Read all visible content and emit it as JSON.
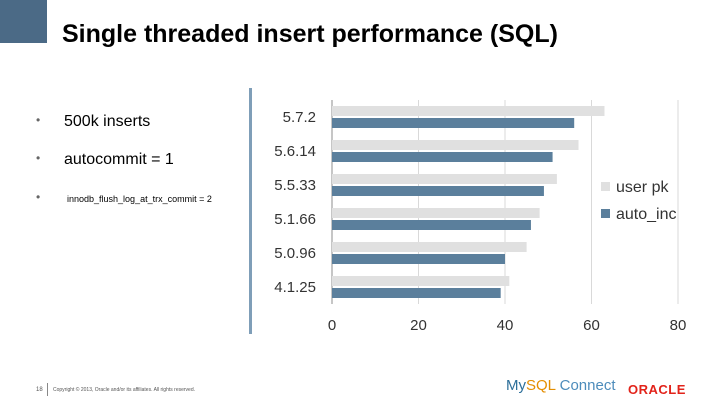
{
  "slide": {
    "title": "Single threaded insert performance (SQL)",
    "bullets": [
      "500k inserts",
      "autocommit = 1",
      "innodb_flush_log_at_trx_commit = 2"
    ],
    "bullet_glyph": "•",
    "footer": {
      "page_number": "18",
      "copyright": "Copyright © 2013, Oracle and/or its affiliates. All rights reserved."
    },
    "logos": {
      "mysql_prefix": "My",
      "mysql_sq": "SQL",
      "mysql_suffix": " Connect",
      "oracle": "ORACLE"
    },
    "colors": {
      "accent_block": "#4b6a86",
      "user_pk": "#e0e0e0",
      "auto_inc": "#5b7f9c"
    }
  },
  "chart_data": {
    "type": "bar",
    "orientation": "horizontal",
    "categories": [
      "5.7.2",
      "5.6.14",
      "5.5.33",
      "5.1.66",
      "5.0.96",
      "4.1.25"
    ],
    "series": [
      {
        "name": "user pk",
        "values": [
          63,
          57,
          52,
          48,
          45,
          41
        ]
      },
      {
        "name": "auto_inc",
        "values": [
          56,
          51,
          49,
          46,
          40,
          39
        ]
      }
    ],
    "xlim": [
      0,
      80
    ],
    "xticks": [
      "0",
      "20",
      "40",
      "60",
      "80"
    ],
    "grid": true,
    "legend": "right"
  }
}
